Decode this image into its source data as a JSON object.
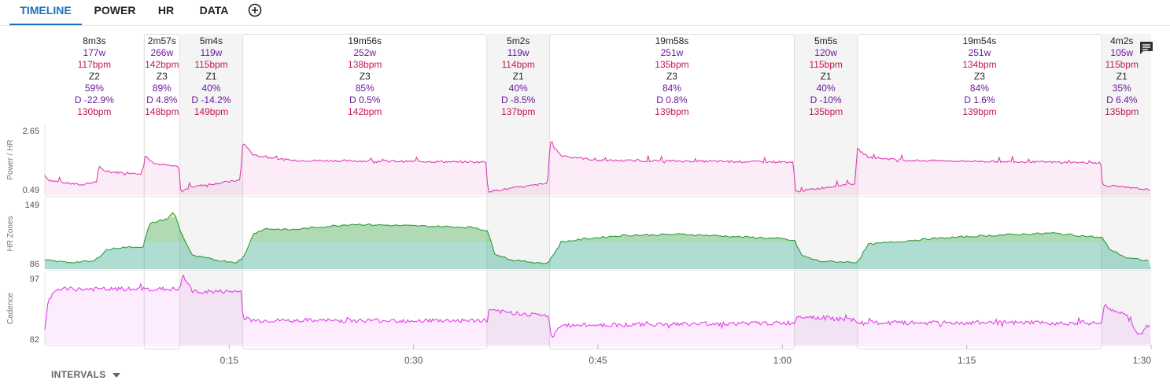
{
  "tabs": [
    {
      "label": "TIMELINE",
      "active": true
    },
    {
      "label": "POWER",
      "active": false
    },
    {
      "label": "HR",
      "active": false
    },
    {
      "label": "DATA",
      "active": false
    }
  ],
  "add_tab_icon": "plus-circle-icon",
  "notes_icon": "comment-icon",
  "intervals_label": "INTERVALS",
  "colors": {
    "power": "#e040b5",
    "cadence": "#e040e8",
    "hr_z1": "#2aa58a",
    "hr_z2": "#2e9e3a",
    "hr_z3": "#e0c040",
    "label_power": "#6a1b9a",
    "label_hr": "#c2185b",
    "accent": "#1e6fc4"
  },
  "chart_data": {
    "type": "line",
    "x_unit": "minutes",
    "xlim": [
      0,
      90
    ],
    "x_ticks": [
      {
        "value": 15,
        "label": "0:15"
      },
      {
        "value": 30,
        "label": "0:30"
      },
      {
        "value": 45,
        "label": "0:45"
      },
      {
        "value": 60,
        "label": "1:00"
      },
      {
        "value": 75,
        "label": "1:15"
      },
      {
        "value": 90,
        "label": "1:30"
      }
    ],
    "panels": [
      {
        "name": "power_hr",
        "ylabel": "Power / HR",
        "ylim": [
          0.49,
          2.65
        ],
        "tick_labels": [
          "2.65",
          "0.49"
        ]
      },
      {
        "name": "hr_zones",
        "ylabel": "HR Zones",
        "ylim": [
          86,
          149
        ],
        "tick_labels": [
          "149",
          "86"
        ]
      },
      {
        "name": "cadence",
        "ylabel": "Cadence",
        "ylim": [
          82,
          97
        ],
        "tick_labels": [
          "97",
          "82"
        ]
      }
    ],
    "intervals": [
      {
        "start": 0.0,
        "end": 8.05,
        "duration": "8m3s",
        "power": "177w",
        "hr": "117bpm",
        "zone": "Z2",
        "pct": "59%",
        "drift": "D -22.9%",
        "max_hr": "130bpm",
        "boxed": false,
        "shaded": false
      },
      {
        "start": 8.05,
        "end": 11.0,
        "duration": "2m57s",
        "power": "266w",
        "hr": "142bpm",
        "zone": "Z3",
        "pct": "89%",
        "drift": "D 4.8%",
        "max_hr": "148bpm",
        "boxed": true,
        "shaded": false
      },
      {
        "start": 11.0,
        "end": 16.07,
        "duration": "5m4s",
        "power": "119w",
        "hr": "115bpm",
        "zone": "Z1",
        "pct": "40%",
        "drift": "D -14.2%",
        "max_hr": "149bpm",
        "boxed": false,
        "shaded": true
      },
      {
        "start": 16.07,
        "end": 36.0,
        "duration": "19m56s",
        "power": "252w",
        "hr": "138bpm",
        "zone": "Z3",
        "pct": "85%",
        "drift": "D 0.5%",
        "max_hr": "142bpm",
        "boxed": true,
        "shaded": false
      },
      {
        "start": 36.0,
        "end": 41.03,
        "duration": "5m2s",
        "power": "119w",
        "hr": "114bpm",
        "zone": "Z1",
        "pct": "40%",
        "drift": "D -8.5%",
        "max_hr": "137bpm",
        "boxed": false,
        "shaded": true
      },
      {
        "start": 41.03,
        "end": 61.0,
        "duration": "19m58s",
        "power": "251w",
        "hr": "135bpm",
        "zone": "Z3",
        "pct": "84%",
        "drift": "D 0.8%",
        "max_hr": "139bpm",
        "boxed": true,
        "shaded": false
      },
      {
        "start": 61.0,
        "end": 66.08,
        "duration": "5m5s",
        "power": "120w",
        "hr": "115bpm",
        "zone": "Z1",
        "pct": "40%",
        "drift": "D -10%",
        "max_hr": "135bpm",
        "boxed": false,
        "shaded": true
      },
      {
        "start": 66.08,
        "end": 86.0,
        "duration": "19m54s",
        "power": "251w",
        "hr": "134bpm",
        "zone": "Z3",
        "pct": "84%",
        "drift": "D 1.6%",
        "max_hr": "139bpm",
        "boxed": true,
        "shaded": false
      },
      {
        "start": 86.0,
        "end": 90.0,
        "duration": "4m2s",
        "power": "105w",
        "hr": "115bpm",
        "zone": "Z1",
        "pct": "35%",
        "drift": "D 6.4%",
        "max_hr": "135bpm",
        "boxed": false,
        "shaded": true
      }
    ],
    "series": [
      {
        "key": "power_hr",
        "points": [
          [
            0,
            1.1
          ],
          [
            0.3,
            0.95
          ],
          [
            1,
            0.9
          ],
          [
            3,
            0.8
          ],
          [
            4.2,
            0.9
          ],
          [
            4.4,
            1.35
          ],
          [
            5,
            1.2
          ],
          [
            8,
            1.15
          ],
          [
            8.1,
            1.7
          ],
          [
            9,
            1.45
          ],
          [
            10.9,
            1.35
          ],
          [
            11.05,
            0.6
          ],
          [
            12,
            0.75
          ],
          [
            15.9,
            0.95
          ],
          [
            16.1,
            2.1
          ],
          [
            17,
            1.7
          ],
          [
            20,
            1.55
          ],
          [
            35.9,
            1.5
          ],
          [
            36.05,
            0.6
          ],
          [
            38,
            0.7
          ],
          [
            40.9,
            0.85
          ],
          [
            41.1,
            2.1
          ],
          [
            42,
            1.7
          ],
          [
            45,
            1.55
          ],
          [
            60.9,
            1.5
          ],
          [
            61.05,
            0.6
          ],
          [
            63,
            0.7
          ],
          [
            65.9,
            0.85
          ],
          [
            66.1,
            1.9
          ],
          [
            67,
            1.65
          ],
          [
            70,
            1.55
          ],
          [
            85.9,
            1.48
          ],
          [
            86.05,
            0.8
          ],
          [
            88,
            0.72
          ],
          [
            90,
            0.65
          ]
        ]
      },
      {
        "key": "hr_zones",
        "points": [
          [
            0,
            94
          ],
          [
            2,
            92
          ],
          [
            4,
            93
          ],
          [
            5,
            103
          ],
          [
            6,
            105
          ],
          [
            8,
            106
          ],
          [
            8.5,
            126
          ],
          [
            9,
            128
          ],
          [
            10,
            131
          ],
          [
            10.5,
            137
          ],
          [
            11.1,
            118
          ],
          [
            12,
            98
          ],
          [
            14,
            94
          ],
          [
            15.5,
            92
          ],
          [
            16.1,
            95
          ],
          [
            17,
            118
          ],
          [
            18,
            122
          ],
          [
            20,
            121
          ],
          [
            23,
            124
          ],
          [
            25,
            126
          ],
          [
            28,
            125
          ],
          [
            32,
            124
          ],
          [
            35,
            123
          ],
          [
            36,
            120
          ],
          [
            36.6,
            100
          ],
          [
            38,
            94
          ],
          [
            40.8,
            91
          ],
          [
            41.1,
            94
          ],
          [
            42,
            110
          ],
          [
            44,
            113
          ],
          [
            47,
            116
          ],
          [
            52,
            117
          ],
          [
            56,
            115
          ],
          [
            60,
            113
          ],
          [
            61,
            111
          ],
          [
            61.6,
            98
          ],
          [
            63,
            93
          ],
          [
            66,
            92
          ],
          [
            66.2,
            94
          ],
          [
            67,
            108
          ],
          [
            69,
            110
          ],
          [
            72,
            113
          ],
          [
            77,
            116
          ],
          [
            82,
            118
          ],
          [
            86,
            114
          ],
          [
            86.6,
            104
          ],
          [
            88,
            96
          ],
          [
            90,
            93
          ]
        ]
      },
      {
        "key": "cadence",
        "points": [
          [
            0,
            85
          ],
          [
            0.3,
            91
          ],
          [
            1,
            93.5
          ],
          [
            8,
            93.5
          ],
          [
            11,
            93.5
          ],
          [
            11.2,
            96.5
          ],
          [
            12,
            93
          ],
          [
            16,
            93
          ],
          [
            16.1,
            87.5
          ],
          [
            17,
            87
          ],
          [
            36,
            87
          ],
          [
            36.1,
            89
          ],
          [
            41,
            88
          ],
          [
            41.2,
            83
          ],
          [
            42,
            86
          ],
          [
            61,
            86.5
          ],
          [
            61.2,
            88
          ],
          [
            66,
            87
          ],
          [
            66.2,
            86.5
          ],
          [
            86,
            86.5
          ],
          [
            86.2,
            90
          ],
          [
            88,
            88
          ],
          [
            89,
            84
          ],
          [
            90,
            86
          ]
        ]
      }
    ]
  }
}
